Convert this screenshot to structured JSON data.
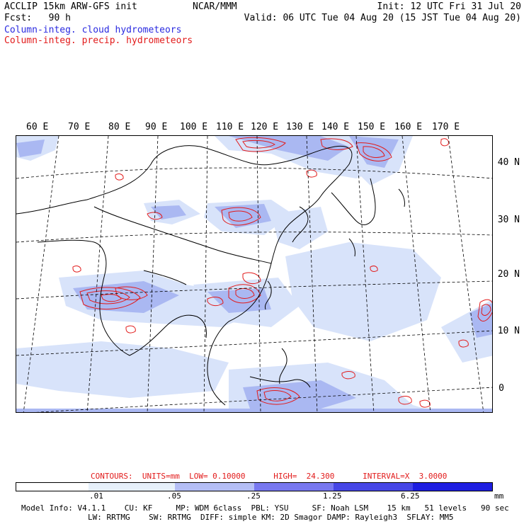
{
  "header": {
    "title_left": "ACCLIP 15km ARW-GFS init",
    "org": "NCAR/MMM",
    "init": "Init: 12 UTC Fri 31 Jul 20",
    "fcst": "Fcst:   90 h",
    "valid": "Valid: 06 UTC Tue 04 Aug 20 (15 JST Tue 04 Aug 20)",
    "legend_cloud": "Column-integ. cloud hydrometeors",
    "legend_precip": "Column-integ. precip. hydrometeors"
  },
  "map": {
    "lon_labels": [
      "60 E",
      "70 E",
      "80 E",
      "90 E",
      "100 E",
      "110 E",
      "120 E",
      "130 E",
      "140 E",
      "150 E",
      "160 E",
      "170 E"
    ],
    "lat_labels": [
      "40 N",
      "30 N",
      "20 N",
      "10 N",
      "0"
    ],
    "colors": {
      "cloud": "#2a2ae0",
      "precip": "#e21a1a",
      "coast": "#000000"
    }
  },
  "contours_line": {
    "label": "CONTOURS:  UNITS=mm  LOW= 0.10000      HIGH=  24.300      INTERVAL=X  3.0000"
  },
  "colorbar": {
    "ticks": [
      ".01",
      ".05",
      ".25",
      "1.25",
      "6.25"
    ],
    "unit": "mm",
    "colors": [
      "#ffffff",
      "#e6f0fa",
      "#b4bef5",
      "#7878f0",
      "#4646e6",
      "#1e1ee1"
    ]
  },
  "footer": {
    "line1": "Model Info: V4.1.1    CU: KF     MP: WDM 6class  PBL: YSU     SF: Noah LSM    15 km   51 levels   90 sec",
    "line2": "LW: RRTMG    SW: RRTMG  DIFF: simple KM: 2D Smagor DAMP: Rayleigh3  SFLAY: MM5"
  }
}
